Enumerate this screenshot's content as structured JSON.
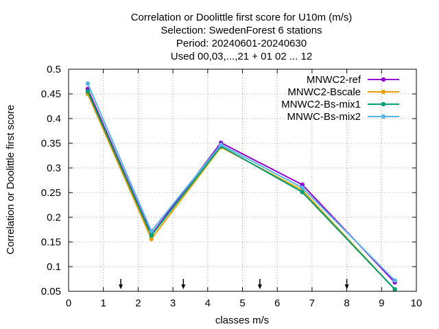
{
  "chart_data": {
    "type": "line",
    "title_lines": [
      "Correlation or Doolittle first score  for U10m (m/s)",
      "Selection: SwedenForest      6 stations",
      "Period: 20240601-20240630",
      "Used 00,03,...,21 + 01 02 ... 12"
    ],
    "xlabel": "classes m/s",
    "ylabel": "Correlation or Doolittle first score",
    "xlim": [
      0,
      10
    ],
    "ylim": [
      0.05,
      0.5
    ],
    "xticks": [
      0,
      1,
      2,
      3,
      4,
      5,
      6,
      7,
      8,
      9,
      10
    ],
    "xtick_labels": [
      "0",
      "1",
      "2",
      "3",
      "4",
      "5",
      "6",
      "7",
      "8",
      "9",
      "10"
    ],
    "yticks": [
      0.05,
      0.1,
      0.15,
      0.2,
      0.25,
      0.3,
      0.35,
      0.4,
      0.45,
      0.5
    ],
    "ytick_labels": [
      "0.05",
      "0.1",
      "0.15",
      "0.2",
      "0.25",
      "0.3",
      "0.35",
      "0.4",
      "0.45",
      "0.5"
    ],
    "grid": true,
    "legend_position": "top-right",
    "class_boundaries": [
      1.5,
      3.3,
      5.5,
      8.0
    ],
    "series": [
      {
        "name": "MNWC2-ref",
        "color": "#9400d3",
        "x": [
          0.55,
          2.38,
          4.38,
          6.72,
          9.38
        ],
        "y": [
          0.46,
          0.165,
          0.351,
          0.266,
          0.068
        ]
      },
      {
        "name": "MNWC2-Bscale",
        "color": "#e69f00",
        "x": [
          0.55,
          2.38,
          4.38,
          6.72,
          9.38
        ],
        "y": [
          0.45,
          0.156,
          0.342,
          0.255,
          0.054
        ]
      },
      {
        "name": "MNWC2-Bs-mix1",
        "color": "#009e73",
        "x": [
          0.55,
          2.38,
          4.38,
          6.72,
          9.38
        ],
        "y": [
          0.455,
          0.163,
          0.344,
          0.251,
          0.054
        ]
      },
      {
        "name": "MNWC-Bs-mix2",
        "color": "#56b4e9",
        "x": [
          0.55,
          2.38,
          4.38,
          6.72,
          9.38
        ],
        "y": [
          0.471,
          0.172,
          0.347,
          0.26,
          0.072
        ]
      }
    ]
  }
}
